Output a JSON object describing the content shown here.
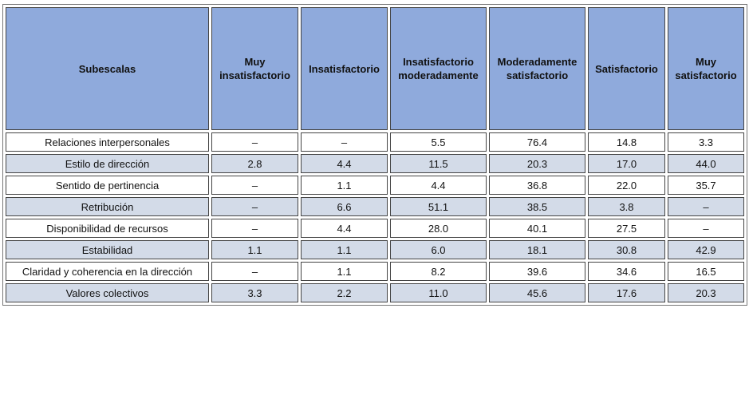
{
  "table": {
    "header": [
      "Subescalas",
      "Muy insatisfactorio",
      "Insatisfactorio",
      "Insatisfactorio moderadamente",
      "Moderadamente satisfactorio",
      "Satisfactorio",
      "Muy satisfactorio"
    ],
    "rows": [
      [
        "Relaciones interpersonales",
        "–",
        "–",
        "5.5",
        "76.4",
        "14.8",
        "3.3"
      ],
      [
        "Estilo de dirección",
        "2.8",
        "4.4",
        "11.5",
        "20.3",
        "17.0",
        "44.0"
      ],
      [
        "Sentido de pertinencia",
        "–",
        "1.1",
        "4.4",
        "36.8",
        "22.0",
        "35.7"
      ],
      [
        "Retribución",
        "–",
        "6.6",
        "51.1",
        "38.5",
        "3.8",
        "–"
      ],
      [
        "Disponibilidad de recursos",
        "–",
        "4.4",
        "28.0",
        "40.1",
        "27.5",
        "–"
      ],
      [
        "Estabilidad",
        "1.1",
        "1.1",
        "6.0",
        "18.1",
        "30.8",
        "42.9"
      ],
      [
        "Claridad y coherencia en la dirección",
        "–",
        "1.1",
        "8.2",
        "39.6",
        "34.6",
        "16.5"
      ],
      [
        "Valores colectivos",
        "3.3",
        "2.2",
        "11.0",
        "45.6",
        "17.6",
        "20.3"
      ]
    ]
  }
}
